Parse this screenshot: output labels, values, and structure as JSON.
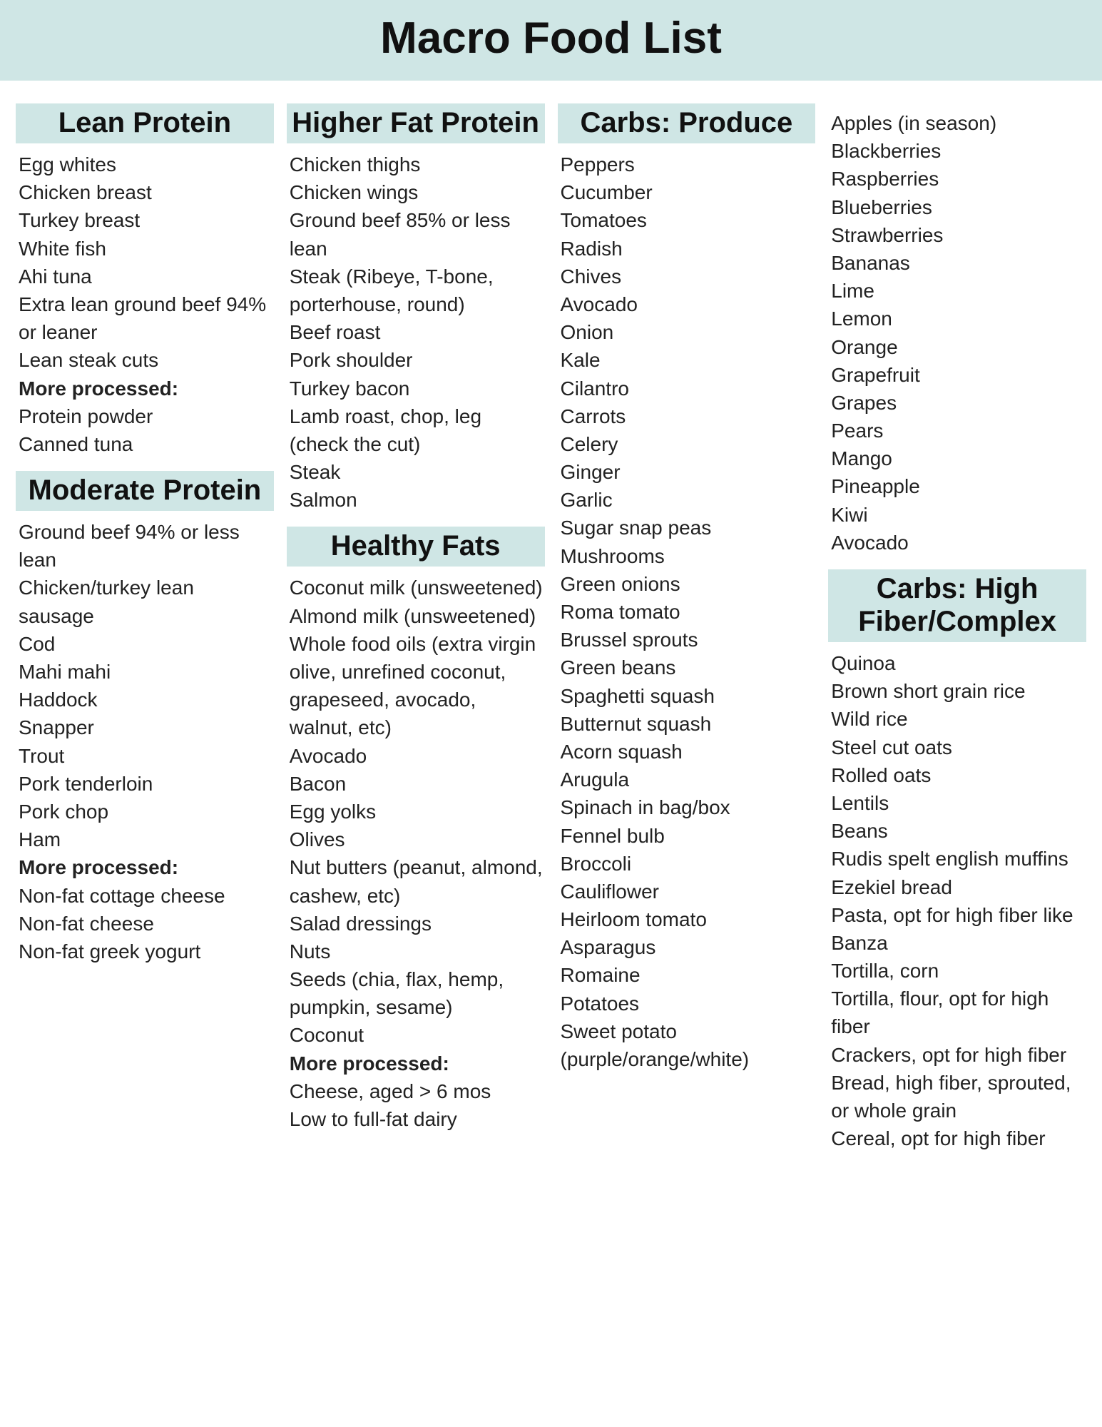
{
  "title": "Macro Food List",
  "colors": {
    "accent_bg": "#cfe6e5",
    "text": "#1a1a1a",
    "page_bg": "#ffffff"
  },
  "typography": {
    "title_fontsize_pt": 46,
    "heading_fontsize_pt": 30,
    "body_fontsize_pt": 21,
    "heading_weight": 800,
    "body_weight": 400
  },
  "sections": {
    "lean_protein": {
      "title": "Lean Protein",
      "items": [
        "Egg whites",
        "Chicken breast",
        "Turkey breast",
        "White fish",
        "Ahi tuna",
        "Extra lean ground beef 94% or leaner",
        "Lean steak cuts"
      ],
      "more_processed_label": "More processed:",
      "more_processed": [
        "Protein powder",
        "Canned tuna"
      ]
    },
    "moderate_protein": {
      "title": "Moderate Protein",
      "items": [
        "Ground beef 94% or less lean",
        "Chicken/turkey lean sausage",
        "Cod",
        "Mahi mahi",
        "Haddock",
        "Snapper",
        "Trout",
        "Pork tenderloin",
        "Pork chop",
        "Ham"
      ],
      "more_processed_label": "More processed:",
      "more_processed": [
        "Non-fat cottage cheese",
        "Non-fat cheese",
        "Non-fat greek yogurt"
      ]
    },
    "higher_fat_protein": {
      "title": "Higher Fat Protein",
      "items": [
        "Chicken thighs",
        "Chicken wings",
        "Ground beef 85% or less lean",
        "Steak (Ribeye, T-bone, porterhouse, round)",
        "Beef roast",
        "Pork shoulder",
        "Turkey bacon",
        "Lamb roast, chop, leg (check the cut)",
        "Steak",
        "Salmon"
      ]
    },
    "healthy_fats": {
      "title": "Healthy Fats",
      "items": [
        " Coconut milk (unsweetened)",
        "Almond milk (unsweetened)",
        "Whole food oils (extra virgin olive, unrefined coconut, grapeseed, avocado, walnut, etc)",
        "Avocado",
        "Bacon",
        "Egg yolks",
        "Olives",
        "Nut butters (peanut, almond, cashew, etc)",
        "Salad dressings",
        "Nuts",
        "Seeds (chia, flax, hemp, pumpkin, sesame)",
        "Coconut"
      ],
      "more_processed_label": "More processed:",
      "more_processed": [
        "Cheese, aged > 6 mos",
        "Low to full-fat dairy"
      ]
    },
    "carbs_produce": {
      "title": "Carbs: Produce",
      "items": [
        "Peppers",
        "Cucumber",
        "Tomatoes",
        "Radish",
        "Chives",
        "Avocado",
        "Onion",
        "Kale",
        "Cilantro",
        "Carrots",
        "Celery",
        "Ginger",
        "Garlic",
        "Sugar snap peas",
        "Mushrooms",
        "Green onions",
        "Roma tomato",
        "Brussel sprouts",
        "Green beans",
        "Spaghetti squash",
        "Butternut squash",
        "Acorn squash",
        "Arugula",
        "Spinach in bag/box",
        "Fennel bulb",
        "Broccoli",
        "Cauliflower",
        "Heirloom tomato",
        "Asparagus",
        "Romaine",
        "Potatoes",
        "Sweet potato (purple/orange/white)"
      ]
    },
    "fruits": {
      "items": [
        "Apples (in season)",
        "Blackberries",
        "Raspberries",
        "Blueberries",
        "Strawberries",
        "Bananas",
        "Lime",
        "Lemon",
        "Orange",
        "Grapefruit",
        "Grapes",
        "Pears",
        "Mango",
        "Pineapple",
        "Kiwi",
        "Avocado"
      ]
    },
    "carbs_complex": {
      "title": "Carbs: High Fiber/Complex",
      "items": [
        "Quinoa",
        "Brown short grain rice",
        "Wild rice",
        "Steel cut oats",
        "Rolled oats",
        "Lentils",
        "Beans",
        "Rudis spelt english muffins",
        "Ezekiel bread",
        "Pasta, opt for high fiber like Banza",
        "Tortilla, corn",
        "Tortilla, flour, opt for high fiber",
        "Crackers, opt for high fiber",
        "Bread, high fiber, sprouted, or whole grain",
        "Cereal, opt for high fiber"
      ]
    }
  }
}
